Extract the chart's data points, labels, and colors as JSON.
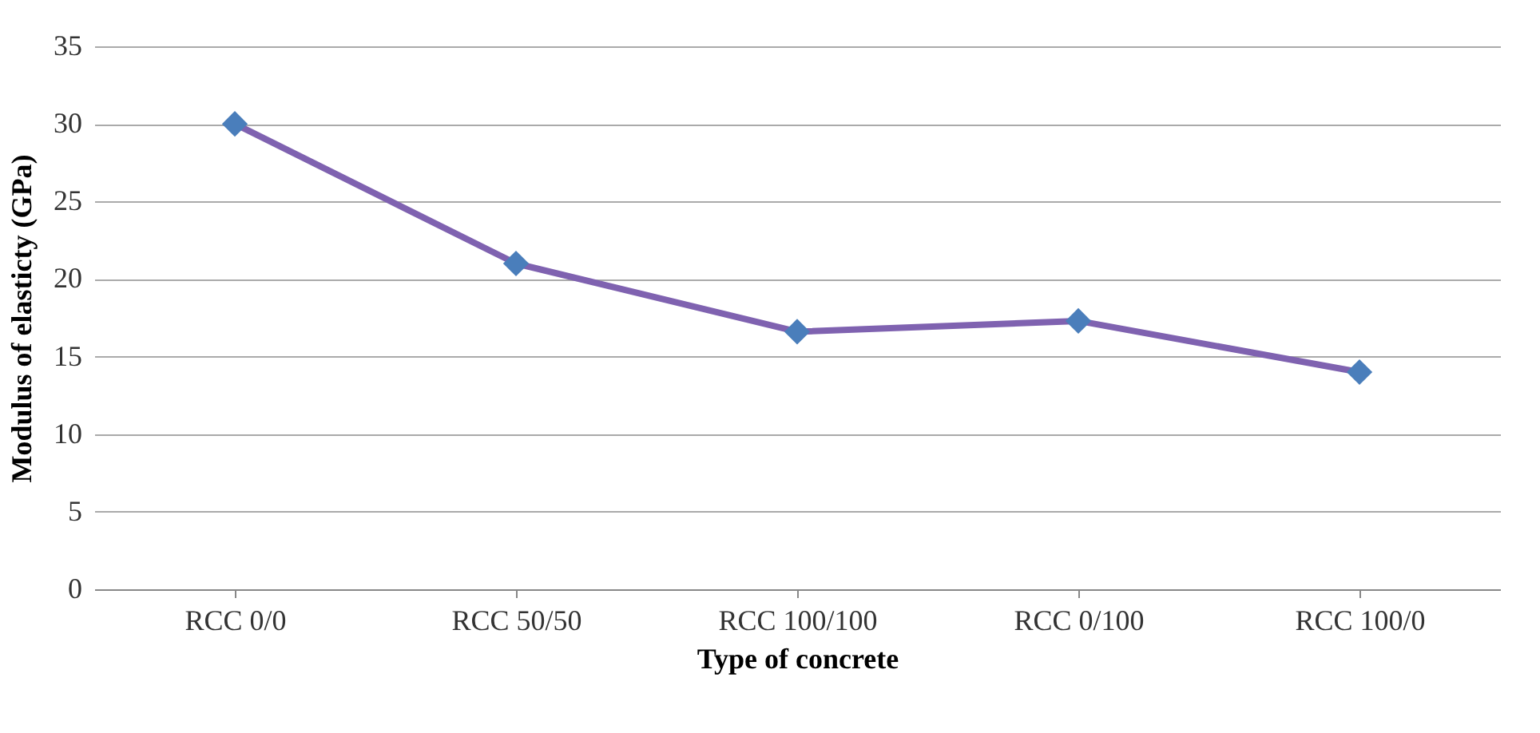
{
  "chart_data": {
    "type": "line",
    "xlabel": "Type of concrete",
    "ylabel": "Modulus  of elasticty (GPa)",
    "categories": [
      "RCC 0/0",
      "RCC 50/50",
      "RCC 100/100",
      "RCC 0/100",
      "RCC 100/0"
    ],
    "series": [
      {
        "color": "#7f62b0",
        "colors": [
          "#4a7ebb",
          "#4a7ebb",
          "#4a7ebb",
          "#4a7ebb",
          "#4a7ebb"
        ],
        "values": [
          30,
          21,
          16.6,
          17.3,
          14
        ]
      }
    ],
    "ylim": [
      0,
      35
    ],
    "yticks": [
      0,
      5,
      10,
      15,
      20,
      25,
      30,
      35
    ],
    "grid": "y",
    "marker": "diamond",
    "line_style": "solid"
  }
}
